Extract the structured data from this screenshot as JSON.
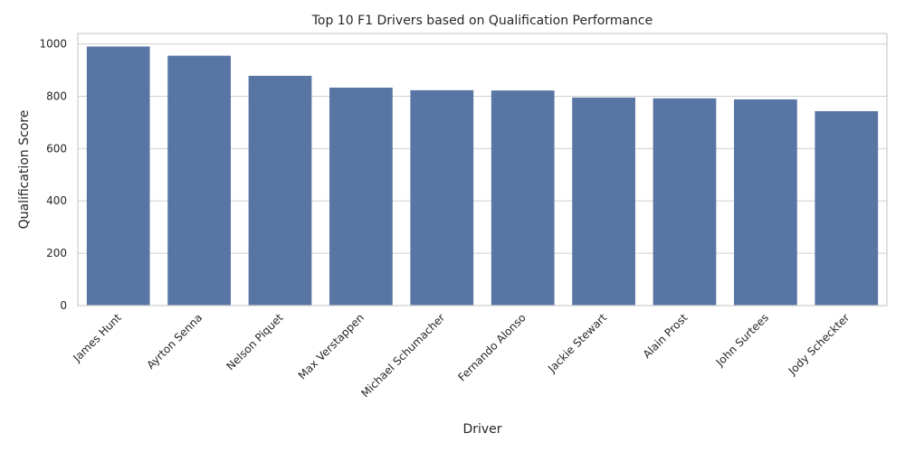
{
  "chart_data": {
    "type": "bar",
    "title": "Top 10 F1 Drivers based on Qualification Performance",
    "xlabel": "Driver",
    "ylabel": "Qualification Score",
    "categories": [
      "James Hunt",
      "Ayrton Senna",
      "Nelson Piquet",
      "Max Verstappen",
      "Michael Schumacher",
      "Fernando Alonso",
      "Jackie Stewart",
      "Alain Prost",
      "John Surtees",
      "Jody Scheckter"
    ],
    "values": [
      990,
      955,
      878,
      833,
      823,
      822,
      795,
      792,
      788,
      743
    ],
    "ylim": [
      0,
      1040
    ],
    "yticks": [
      0,
      200,
      400,
      600,
      800,
      1000
    ],
    "grid": true,
    "bar_color": "#5875a4"
  }
}
